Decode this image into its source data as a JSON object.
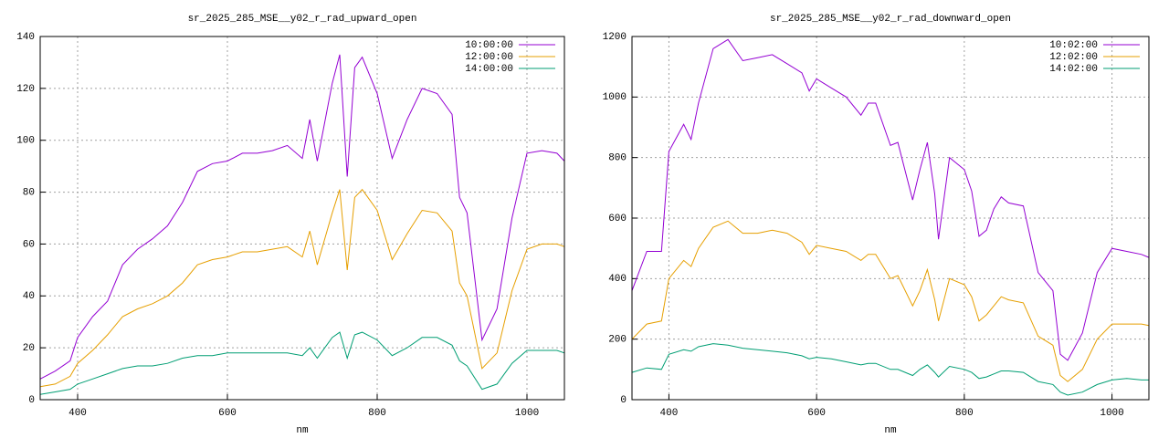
{
  "chart_data": [
    {
      "type": "line",
      "title": "sr_2025_285_MSE__y02_r_rad_upward_open",
      "xlabel": "nm",
      "x": [
        350,
        370,
        390,
        400,
        420,
        440,
        460,
        480,
        500,
        520,
        540,
        560,
        580,
        600,
        620,
        640,
        660,
        680,
        700,
        710,
        720,
        740,
        750,
        760,
        770,
        780,
        800,
        820,
        840,
        860,
        880,
        900,
        910,
        920,
        940,
        960,
        980,
        1000,
        1020,
        1040,
        1050
      ],
      "series": [
        {
          "name": "10:00:00",
          "color": "#9400d3",
          "values": [
            8,
            11,
            15,
            24,
            32,
            38,
            52,
            58,
            62,
            67,
            76,
            88,
            91,
            92,
            95,
            95,
            96,
            98,
            93,
            108,
            92,
            122,
            133,
            86,
            128,
            132,
            118,
            93,
            108,
            120,
            118,
            110,
            78,
            72,
            23,
            35,
            70,
            95,
            96,
            95,
            92
          ]
        },
        {
          "name": "12:00:00",
          "color": "#e69f00",
          "values": [
            5,
            6,
            9,
            14,
            19,
            25,
            32,
            35,
            37,
            40,
            45,
            52,
            54,
            55,
            57,
            57,
            58,
            59,
            55,
            65,
            52,
            72,
            81,
            50,
            78,
            81,
            73,
            54,
            64,
            73,
            72,
            65,
            45,
            40,
            12,
            18,
            42,
            58,
            60,
            60,
            59
          ]
        },
        {
          "name": "14:00:00",
          "color": "#009e73",
          "values": [
            2,
            3,
            4,
            6,
            8,
            10,
            12,
            13,
            13,
            14,
            16,
            17,
            17,
            18,
            18,
            18,
            18,
            18,
            17,
            20,
            16,
            24,
            26,
            16,
            25,
            26,
            23,
            17,
            20,
            24,
            24,
            21,
            15,
            13,
            4,
            6,
            14,
            19,
            19,
            19,
            18
          ]
        }
      ],
      "xlim": [
        350,
        1050
      ],
      "xticks": [
        400,
        600,
        800,
        1000
      ],
      "ylim": [
        0,
        140
      ],
      "yticks": [
        0,
        20,
        40,
        60,
        80,
        100,
        120,
        140
      ],
      "grid": true,
      "legend": "top-right"
    },
    {
      "type": "line",
      "title": "sr_2025_285_MSE__y02_r_rad_downward_open",
      "xlabel": "nm",
      "x": [
        350,
        370,
        390,
        400,
        420,
        430,
        440,
        460,
        480,
        500,
        520,
        540,
        560,
        580,
        590,
        600,
        620,
        640,
        660,
        670,
        680,
        700,
        710,
        730,
        740,
        750,
        760,
        765,
        780,
        800,
        810,
        820,
        830,
        840,
        850,
        860,
        880,
        900,
        920,
        930,
        940,
        960,
        980,
        1000,
        1020,
        1040,
        1050
      ],
      "series": [
        {
          "name": "10:02:00",
          "color": "#9400d3",
          "values": [
            360,
            490,
            490,
            820,
            910,
            860,
            980,
            1160,
            1190,
            1120,
            1130,
            1140,
            1110,
            1080,
            1020,
            1060,
            1030,
            1000,
            940,
            980,
            980,
            840,
            850,
            660,
            760,
            850,
            680,
            530,
            800,
            760,
            690,
            540,
            560,
            630,
            670,
            650,
            640,
            420,
            360,
            150,
            130,
            220,
            420,
            500,
            490,
            480,
            470
          ]
        },
        {
          "name": "12:02:00",
          "color": "#e69f00",
          "values": [
            200,
            250,
            260,
            400,
            460,
            440,
            500,
            570,
            590,
            550,
            550,
            560,
            550,
            520,
            480,
            510,
            500,
            490,
            460,
            480,
            480,
            400,
            410,
            310,
            360,
            430,
            330,
            260,
            400,
            380,
            340,
            260,
            280,
            310,
            340,
            330,
            320,
            210,
            180,
            80,
            60,
            100,
            200,
            250,
            250,
            250,
            245
          ]
        },
        {
          "name": "14:02:00",
          "color": "#009e73",
          "values": [
            90,
            105,
            100,
            150,
            165,
            160,
            175,
            185,
            180,
            170,
            165,
            160,
            155,
            145,
            135,
            140,
            135,
            125,
            115,
            120,
            120,
            100,
            100,
            80,
            100,
            115,
            90,
            75,
            110,
            100,
            90,
            70,
            75,
            85,
            95,
            95,
            90,
            60,
            50,
            25,
            15,
            25,
            50,
            65,
            70,
            65,
            65
          ]
        }
      ],
      "xlim": [
        350,
        1050
      ],
      "xticks": [
        400,
        600,
        800,
        1000
      ],
      "ylim": [
        0,
        1200
      ],
      "yticks": [
        0,
        200,
        400,
        600,
        800,
        1000,
        1200
      ],
      "grid": true,
      "legend": "top-right"
    }
  ]
}
